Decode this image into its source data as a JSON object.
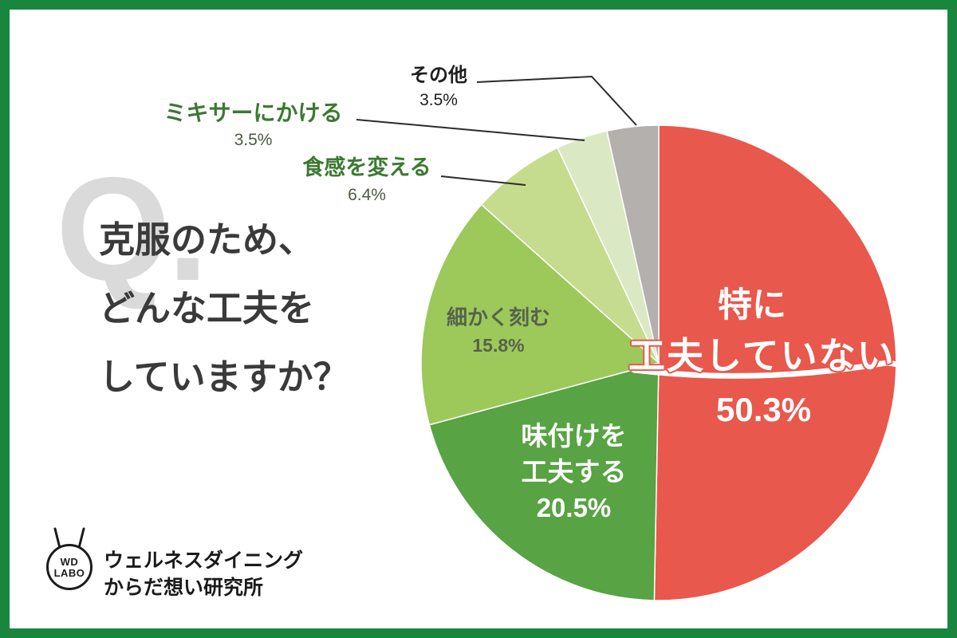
{
  "frame": {
    "border_color": "#18863e",
    "background": "#ffffff"
  },
  "question": {
    "watermark": "Q.",
    "lines": [
      "克服のため、",
      "どんな工夫を",
      "していますか？"
    ]
  },
  "chart_data": {
    "type": "pie",
    "title": "克服のため、どんな工夫をしていますか？",
    "start_angle_deg": 0,
    "direction": "clockwise",
    "unit": "%",
    "slices": [
      {
        "label": "特に工夫していない",
        "value": 50.3,
        "pct_label": "50.3%",
        "color": "#e8584c",
        "label_lines": [
          "特に",
          "工夫していない"
        ]
      },
      {
        "label": "味付けを工夫する",
        "value": 20.5,
        "pct_label": "20.5%",
        "color": "#58a343",
        "label_lines": [
          "味付けを",
          "工夫する"
        ]
      },
      {
        "label": "細かく刻む",
        "value": 15.8,
        "pct_label": "15.8%",
        "color": "#9cc95a"
      },
      {
        "label": "食感を変える",
        "value": 6.4,
        "pct_label": "6.4%",
        "color": "#c5dc8e"
      },
      {
        "label": "ミキサーにかける",
        "value": 3.5,
        "pct_label": "3.5%",
        "color": "#dbe8c4"
      },
      {
        "label": "その他",
        "value": 3.5,
        "pct_label": "3.5%",
        "color": "#b3b0ad"
      }
    ]
  },
  "logo": {
    "mark_top": "WD",
    "mark_bottom": "LABO",
    "org_lines": [
      "ウェルネスダイニング",
      "からだ想い研究所"
    ]
  }
}
